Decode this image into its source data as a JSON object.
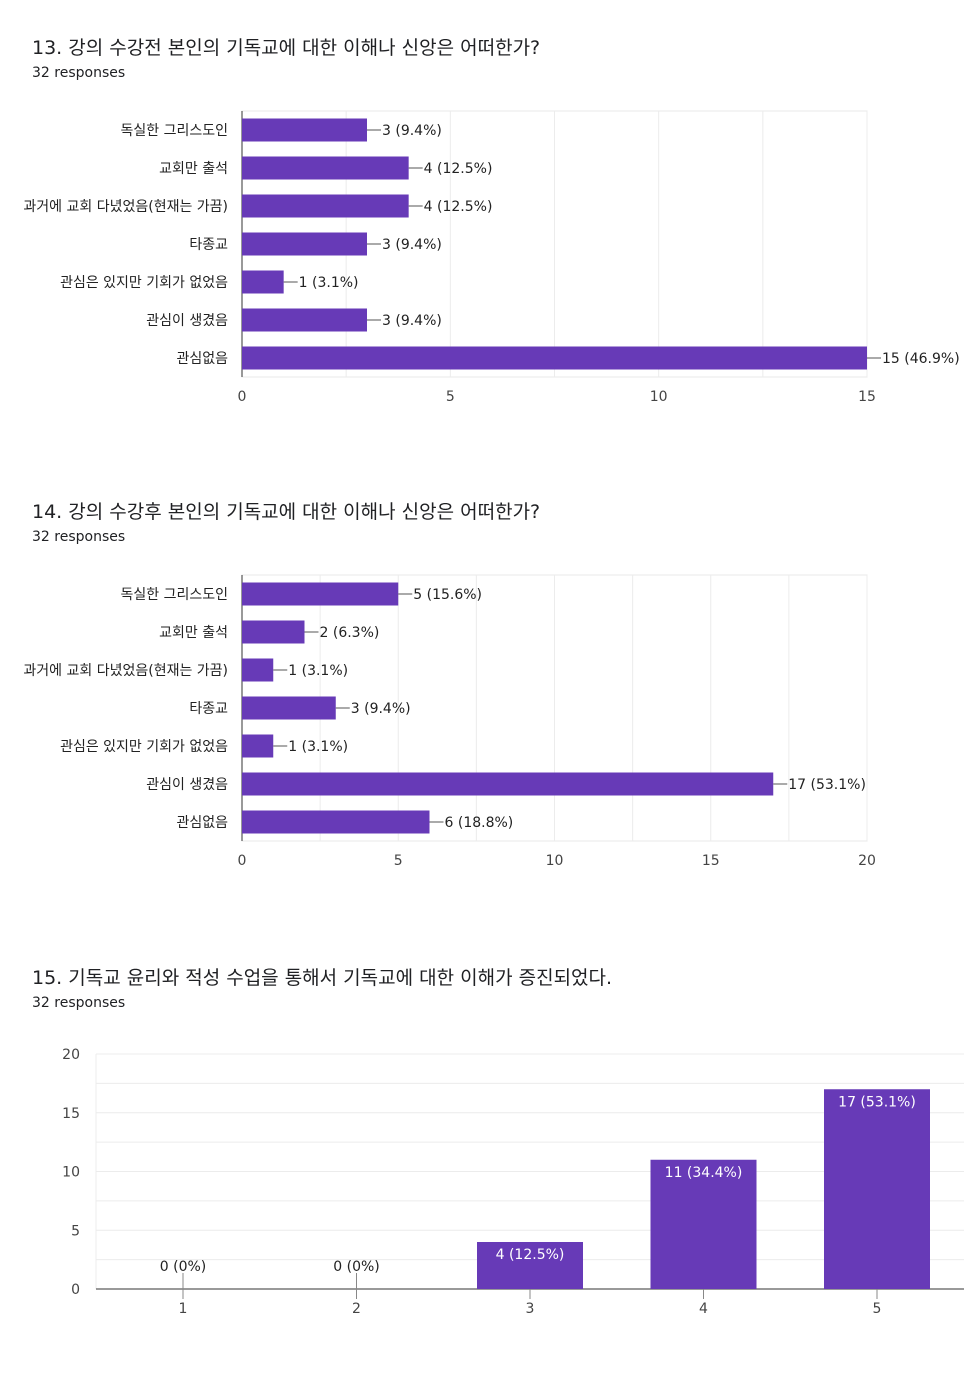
{
  "accent_color": "#673ab7",
  "questions": [
    {
      "title": "13. 강의 수강전 본인의 기독교에 대한 이해나 신앙은 어떠한가?",
      "responses": "32 responses"
    },
    {
      "title": "14. 강의 수강후 본인의 기독교에 대한 이해나 신앙은 어떠한가?",
      "responses": "32 responses"
    },
    {
      "title": "15. 기독교 윤리와 적성 수업을 통해서 기독교에 대한 이해가 증진되었다.",
      "responses": "32 responses"
    }
  ],
  "chart_data": [
    {
      "type": "bar",
      "orientation": "horizontal",
      "categories": [
        "독실한 그리스도인",
        "교회만 출석",
        "과거에 교회 다녔었음(현재는 가끔)",
        "타종교",
        "관심은 있지만 기회가 없었음",
        "관심이 생겼음",
        "관심없음"
      ],
      "values": [
        3,
        4,
        4,
        3,
        1,
        3,
        15
      ],
      "labels": [
        "3 (9.4%)",
        "4 (12.5%)",
        "4 (12.5%)",
        "3 (9.4%)",
        "1 (3.1%)",
        "3 (9.4%)",
        "15 (46.9%)"
      ],
      "xlim": [
        0,
        15
      ],
      "ticks": [
        0,
        5,
        10,
        15
      ],
      "grid": true
    },
    {
      "type": "bar",
      "orientation": "horizontal",
      "categories": [
        "독실한 그리스도인",
        "교회만 출석",
        "과거에 교회 다녔었음(현재는 가끔)",
        "타종교",
        "관심은 있지만 기회가 없었음",
        "관심이 생겼음",
        "관심없음"
      ],
      "values": [
        5,
        2,
        1,
        3,
        1,
        17,
        6
      ],
      "labels": [
        "5 (15.6%)",
        "2 (6.3%)",
        "1 (3.1%)",
        "3 (9.4%)",
        "1 (3.1%)",
        "17 (53.1%)",
        "6 (18.8%)"
      ],
      "xlim": [
        0,
        20
      ],
      "ticks": [
        0,
        5,
        10,
        15,
        20
      ],
      "grid": true
    },
    {
      "type": "bar",
      "orientation": "vertical",
      "categories": [
        "1",
        "2",
        "3",
        "4",
        "5"
      ],
      "values": [
        0,
        0,
        4,
        11,
        17
      ],
      "labels": [
        "0 (0%)",
        "0 (0%)",
        "4 (12.5%)",
        "11 (34.4%)",
        "17 (53.1%)"
      ],
      "ylim": [
        0,
        20
      ],
      "ticks": [
        0,
        5,
        10,
        15,
        20
      ],
      "grid": true
    }
  ]
}
